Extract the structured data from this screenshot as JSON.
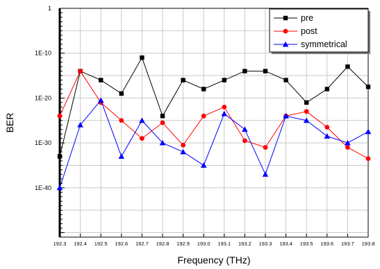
{
  "chart_data": {
    "type": "line",
    "xlabel": "Frequency (THz)",
    "ylabel": "BER",
    "scale_y": "log",
    "ylim_exp": [
      -51,
      0
    ],
    "x": [
      192.3,
      192.4,
      192.5,
      192.6,
      192.7,
      192.8,
      192.9,
      193.0,
      193.1,
      193.2,
      193.3,
      193.4,
      193.5,
      193.6,
      193.7,
      193.8
    ],
    "x_tick_labels": [
      "192.3",
      "192.4",
      "192.5",
      "192.6",
      "192.7",
      "192.8",
      "192.9",
      "193.0",
      "193.1",
      "193.2",
      "193.3",
      "193.4",
      "193.5",
      "193.6",
      "193.7",
      "193.8"
    ],
    "y_ticks": [
      {
        "exp": 0,
        "label": "1"
      },
      {
        "exp": -10,
        "label": "1E-10"
      },
      {
        "exp": -20,
        "label": "1E-20"
      },
      {
        "exp": -30,
        "label": "1E-30"
      },
      {
        "exp": -40,
        "label": "1E-40"
      }
    ],
    "grid": true,
    "legend_position": "top-right",
    "series": [
      {
        "name": "pre",
        "color": "#000000",
        "marker": "square",
        "log10_values": [
          -33,
          -14,
          -16,
          -19,
          -11,
          -24,
          -16,
          -18,
          -16,
          -14,
          -14,
          -16,
          -21,
          -18,
          -13,
          -17.5
        ]
      },
      {
        "name": "post",
        "color": "#ff0000",
        "marker": "circle",
        "log10_values": [
          -24,
          -14,
          -21,
          -25,
          -29,
          -25.5,
          -30.5,
          -24,
          -22,
          -29.5,
          -31,
          -24,
          -23,
          -26.5,
          -31,
          -33.5
        ]
      },
      {
        "name": "symmetrical",
        "color": "#0000ff",
        "marker": "triangle",
        "log10_values": [
          -40,
          -26,
          -20.5,
          -33,
          -25,
          -30,
          -32,
          -35,
          -23.5,
          -27,
          -37,
          -24,
          -25,
          -28.5,
          -30,
          -27.5
        ]
      }
    ]
  }
}
